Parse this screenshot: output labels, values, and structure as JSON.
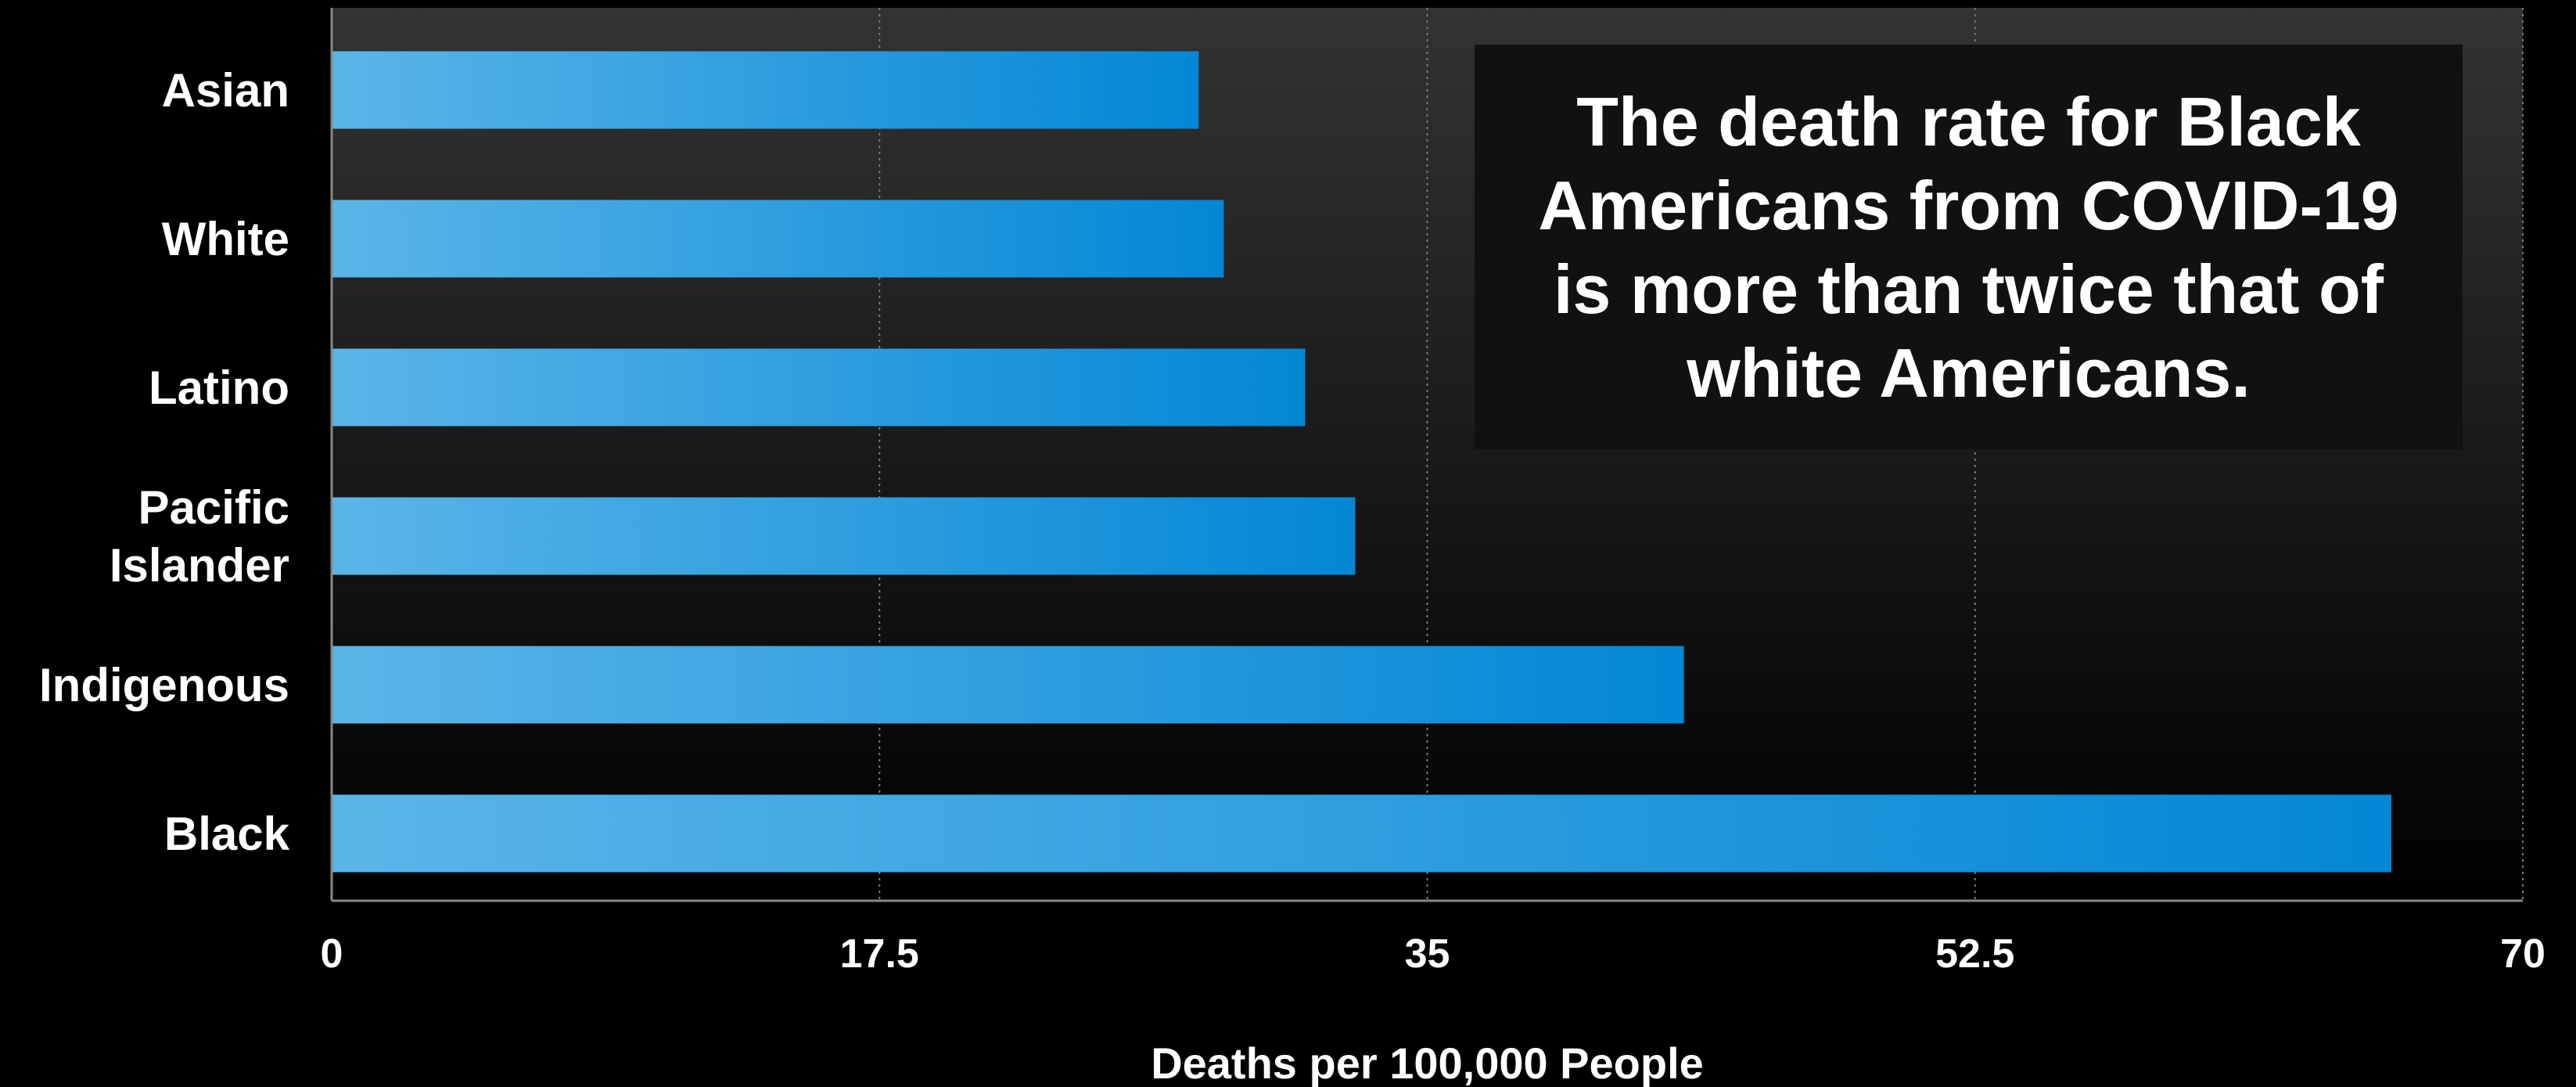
{
  "chart_data": {
    "type": "bar",
    "orientation": "horizontal",
    "categories": [
      "Asian",
      "White",
      "Latino",
      "Pacific Islander",
      "Indigenous",
      "Black"
    ],
    "category_lines": [
      [
        "Asian"
      ],
      [
        "White"
      ],
      [
        "Latino"
      ],
      [
        "Pacific",
        "Islander"
      ],
      [
        "Indigenous"
      ],
      [
        "Black"
      ]
    ],
    "values": [
      27.7,
      28.5,
      31.1,
      32.7,
      43.2,
      65.8
    ],
    "xlim": [
      0,
      70
    ],
    "xticks": [
      0,
      17.5,
      35,
      52.5,
      70
    ],
    "xtick_labels": [
      "0",
      "17.5",
      "35",
      "52.5",
      "70"
    ],
    "xlabel": "Deaths per 100,000 People",
    "ylabel": "",
    "grid": "vertical dotted",
    "annotation": {
      "lines": [
        "The death rate for Black",
        "Americans from COVID-19",
        "is more than twice that of",
        "white Americans."
      ]
    },
    "colors": {
      "bar_start": "#5BB5E8",
      "bar_end": "#0387D6",
      "background_top": "#333333",
      "background_bottom": "#000000",
      "annotation_box": "#111111",
      "text": "#ffffff"
    }
  }
}
